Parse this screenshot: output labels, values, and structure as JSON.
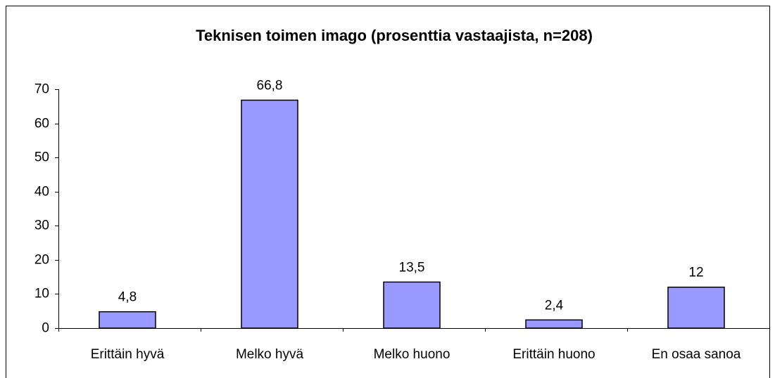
{
  "chart_data": {
    "type": "bar",
    "title": "Teknisen toimen imago (prosenttia vastaajista, n=208)",
    "categories": [
      "Erittäin hyvä",
      "Melko hyvä",
      "Melko huono",
      "Erittäin huono",
      "En osaa sanoa"
    ],
    "values": [
      4.8,
      66.8,
      13.5,
      2.4,
      12
    ],
    "value_labels": [
      "4,8",
      "66,8",
      "13,5",
      "2,4",
      "12"
    ],
    "color": "#9999ff",
    "ylim": [
      0,
      70
    ],
    "yticks": [
      0,
      10,
      20,
      30,
      40,
      50,
      60,
      70
    ],
    "grid": false
  }
}
